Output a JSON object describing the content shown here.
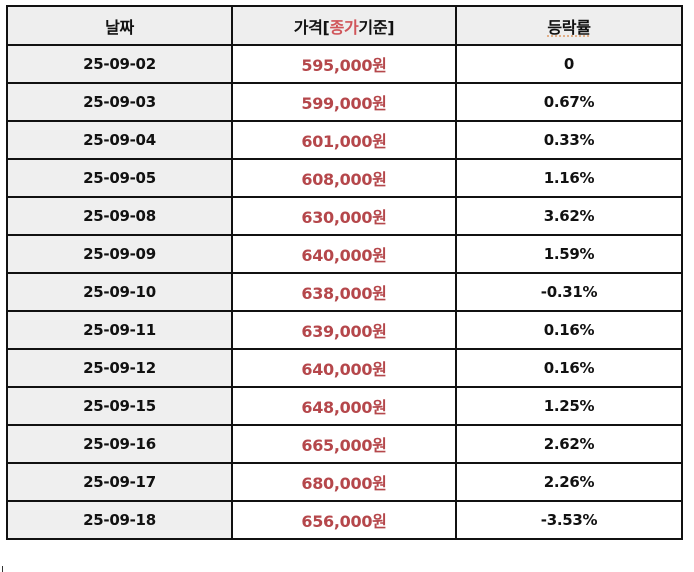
{
  "table": {
    "headers": {
      "date": "날짜",
      "price_prefix": "가격[",
      "price_accent": "종가",
      "price_suffix": "기준]",
      "rate": "등락률"
    },
    "rows": [
      {
        "date": "25-09-02",
        "price": "595,000원",
        "rate": "0"
      },
      {
        "date": "25-09-03",
        "price": "599,000원",
        "rate": "0.67%"
      },
      {
        "date": "25-09-04",
        "price": "601,000원",
        "rate": "0.33%"
      },
      {
        "date": "25-09-05",
        "price": "608,000원",
        "rate": "1.16%"
      },
      {
        "date": "25-09-08",
        "price": "630,000원",
        "rate": "3.62%"
      },
      {
        "date": "25-09-09",
        "price": "640,000원",
        "rate": "1.59%"
      },
      {
        "date": "25-09-10",
        "price": "638,000원",
        "rate": "-0.31%"
      },
      {
        "date": "25-09-11",
        "price": "639,000원",
        "rate": "0.16%"
      },
      {
        "date": "25-09-12",
        "price": "640,000원",
        "rate": "0.16%"
      },
      {
        "date": "25-09-15",
        "price": "648,000원",
        "rate": "1.25%"
      },
      {
        "date": "25-09-16",
        "price": "665,000원",
        "rate": "2.62%"
      },
      {
        "date": "25-09-17",
        "price": "680,000원",
        "rate": "2.26%"
      },
      {
        "date": "25-09-18",
        "price": "656,000원",
        "rate": "-3.53%"
      }
    ]
  },
  "colors": {
    "price_text": "#b5474b",
    "header_accent": "#d0555a",
    "header_bg": "#eeeeee",
    "date_bg": "#efefef",
    "border": "#111111"
  }
}
